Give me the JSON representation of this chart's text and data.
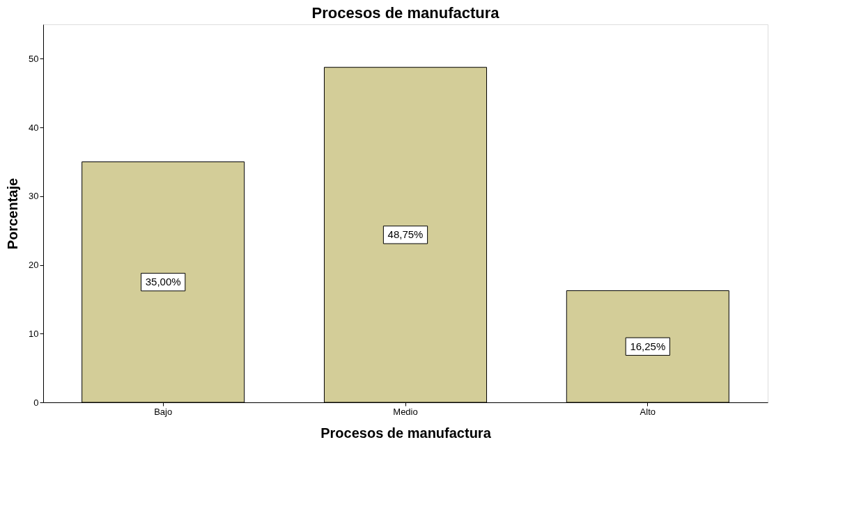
{
  "chart_data": {
    "type": "bar",
    "title": "Procesos de manufactura",
    "xlabel": "Procesos de manufactura",
    "ylabel": "Porcentaje",
    "categories": [
      "Bajo",
      "Medio",
      "Alto"
    ],
    "series": [
      {
        "color": "#d3cd98",
        "values": [
          35.0,
          48.75,
          16.25
        ]
      }
    ],
    "value_labels": [
      "35,00%",
      "48,75%",
      "16,25%"
    ],
    "ylim": [
      0,
      55
    ],
    "yticks": [
      0,
      10,
      20,
      30,
      40,
      50
    ],
    "grid": false
  }
}
